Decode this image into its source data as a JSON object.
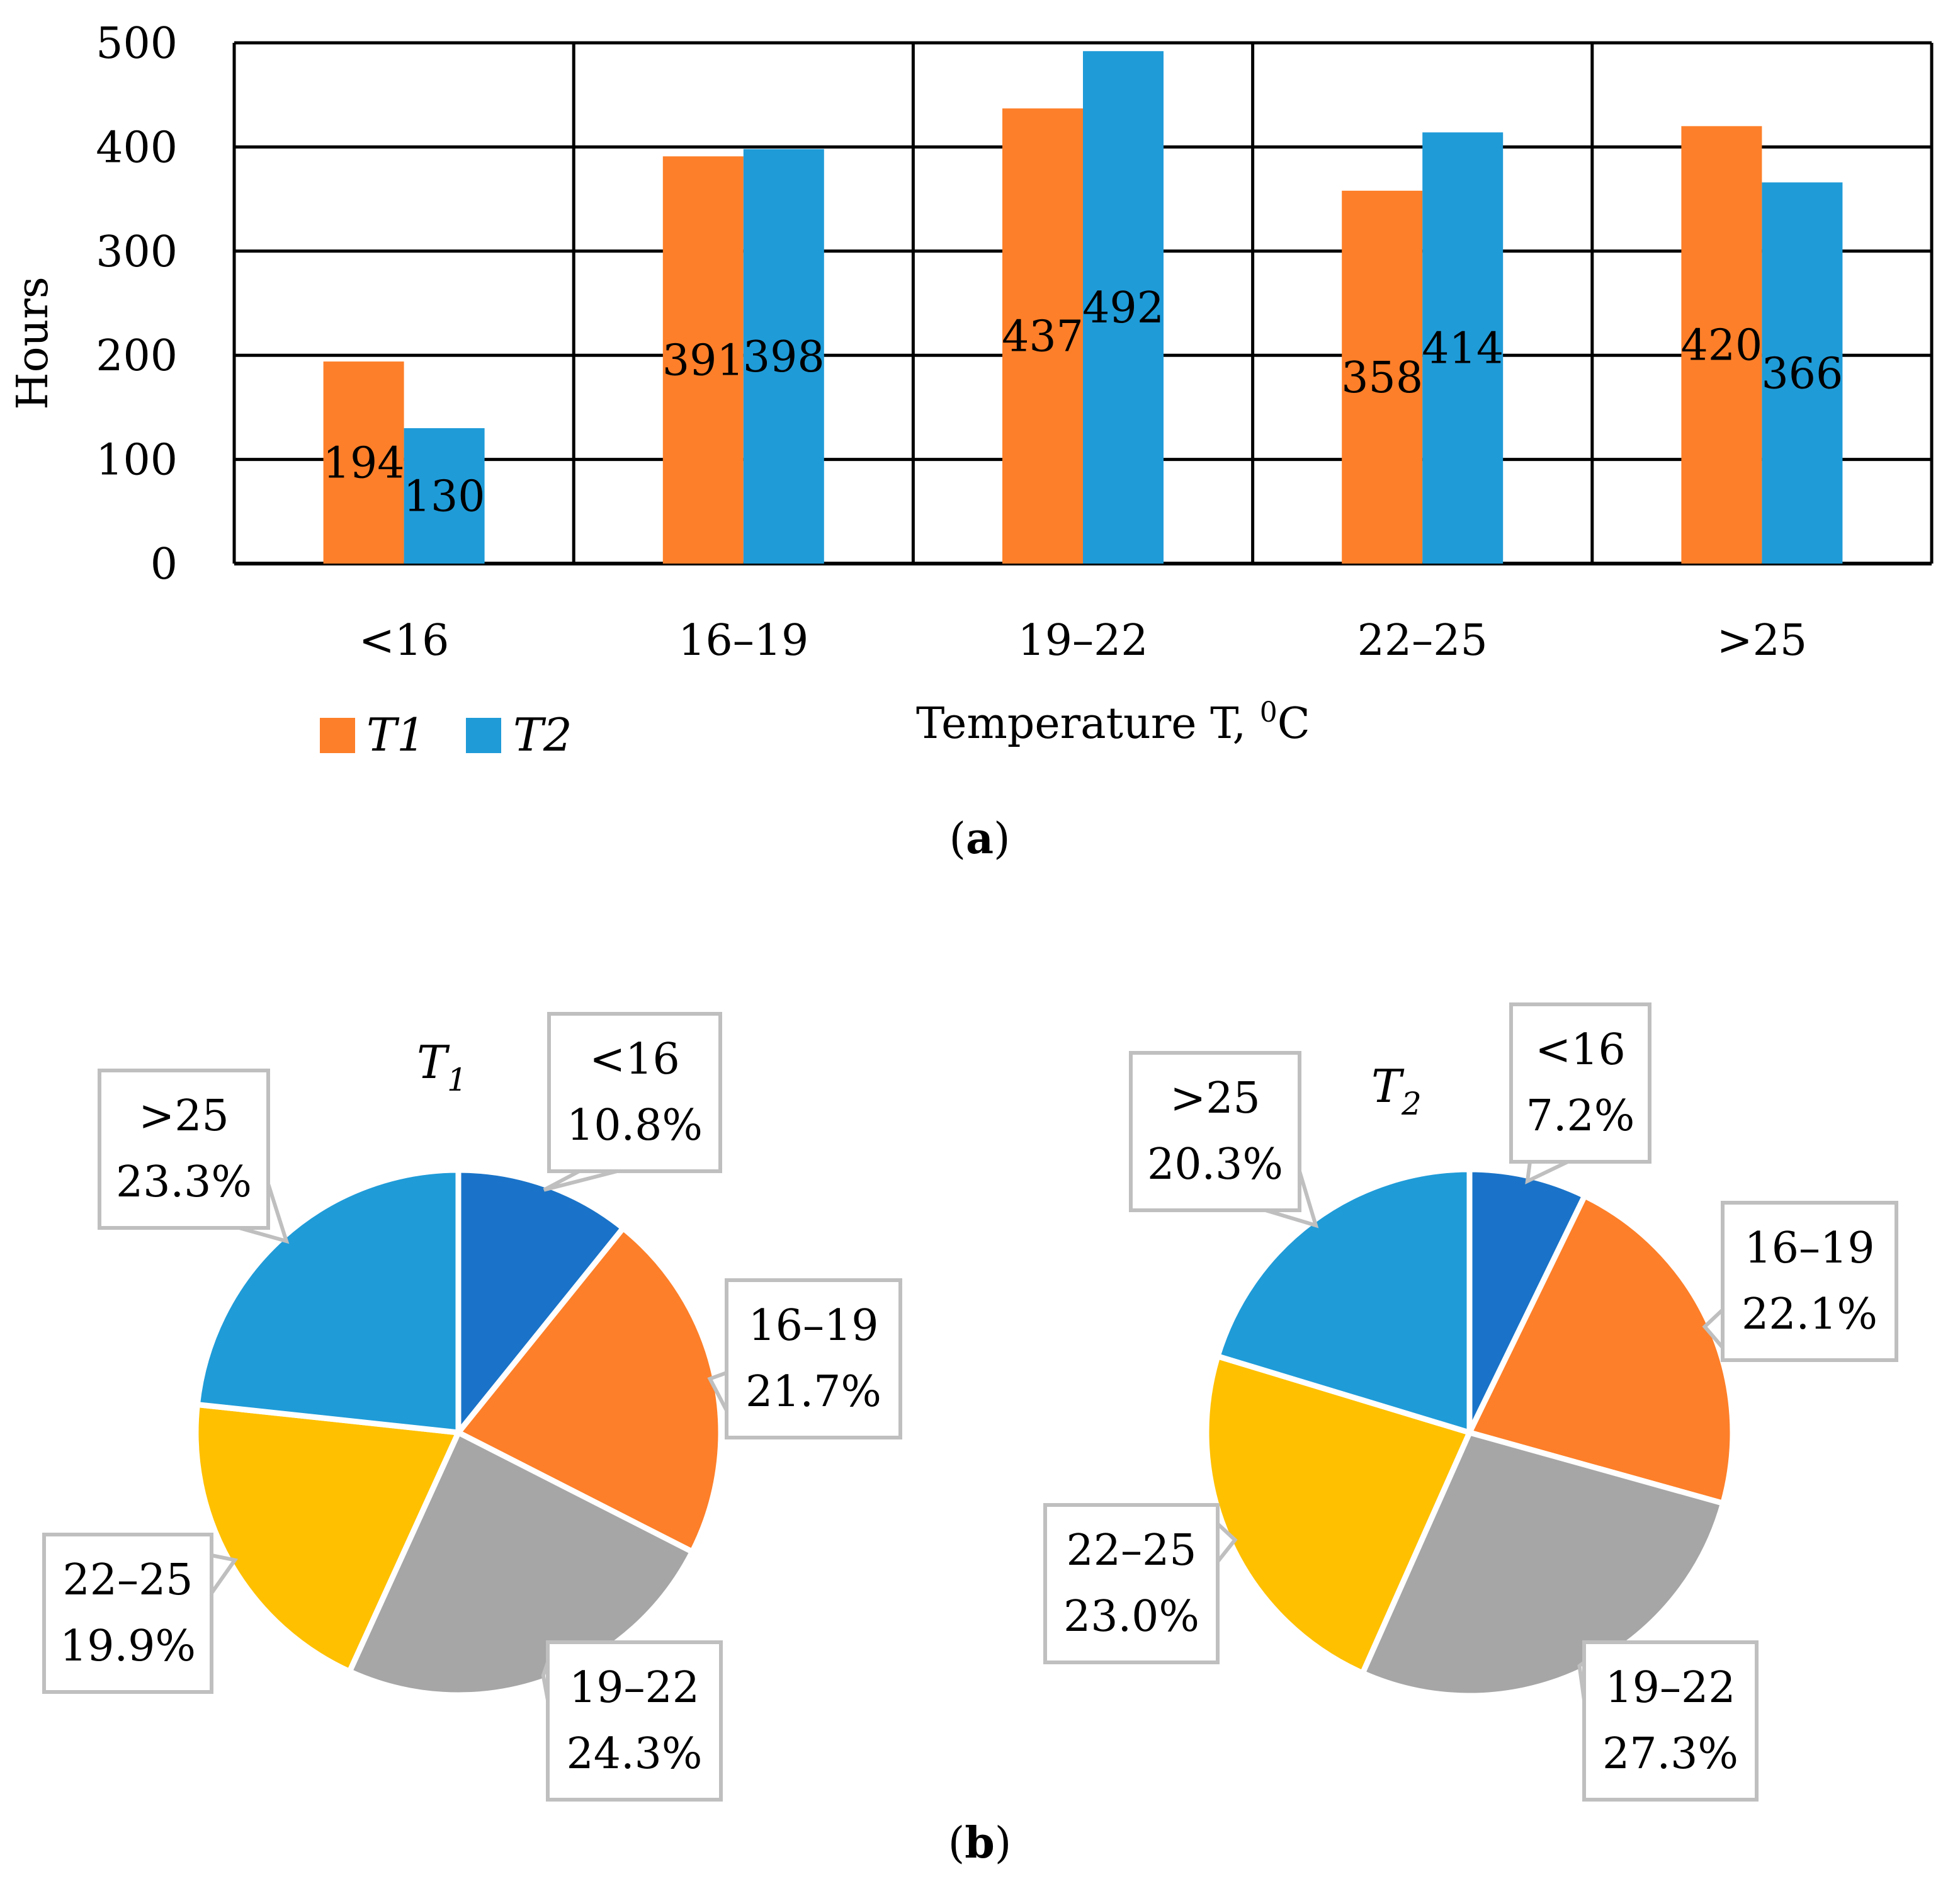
{
  "colors": {
    "t1_bar": "#FD7F29",
    "t2_bar": "#1F9BD8",
    "pie_lt16": "#1A73C8",
    "pie_16_19": "#FD7F29",
    "pie_19_22": "#A6A6A6",
    "pie_22_25": "#FFC000",
    "pie_gt25": "#1F9BD8"
  },
  "chart_data": [
    {
      "type": "bar",
      "ylabel": "Hours",
      "xlabel": "Temperature T, ",
      "xlabel_sup": "0",
      "xlabel_unit": "C",
      "ylim": [
        0,
        500
      ],
      "yticks": [
        0,
        100,
        200,
        300,
        400,
        500
      ],
      "grid": true,
      "categories": [
        "<16",
        "16–19",
        "19–22",
        "22–25",
        ">25"
      ],
      "series": [
        {
          "name": "T1",
          "values": [
            194,
            391,
            437,
            358,
            420
          ]
        },
        {
          "name": "T2",
          "values": [
            130,
            398,
            492,
            414,
            366
          ]
        }
      ],
      "caption_open": "(",
      "caption_letter": "a",
      "caption_close": ")"
    },
    {
      "type": "pie",
      "title_main": "T",
      "title_sub": "1",
      "slices": [
        {
          "label": "<16",
          "value": 10.8,
          "pct": "10.8%"
        },
        {
          "label": "16–19",
          "value": 21.7,
          "pct": "21.7%"
        },
        {
          "label": "19–22",
          "value": 24.3,
          "pct": "24.3%"
        },
        {
          "label": "22–25",
          "value": 19.9,
          "pct": "19.9%"
        },
        {
          "label": ">25",
          "value": 23.3,
          "pct": "23.3%"
        }
      ]
    },
    {
      "type": "pie",
      "title_main": "T",
      "title_sub": "2",
      "slices": [
        {
          "label": "<16",
          "value": 7.2,
          "pct": "7.2%"
        },
        {
          "label": "16–19",
          "value": 22.1,
          "pct": "22.1%"
        },
        {
          "label": "19–22",
          "value": 27.3,
          "pct": "27.3%"
        },
        {
          "label": "22–25",
          "value": 23.0,
          "pct": "23.0%"
        },
        {
          "label": ">25",
          "value": 20.3,
          "pct": "20.3%"
        }
      ],
      "caption_open": "(",
      "caption_letter": "b",
      "caption_close": ")"
    }
  ]
}
